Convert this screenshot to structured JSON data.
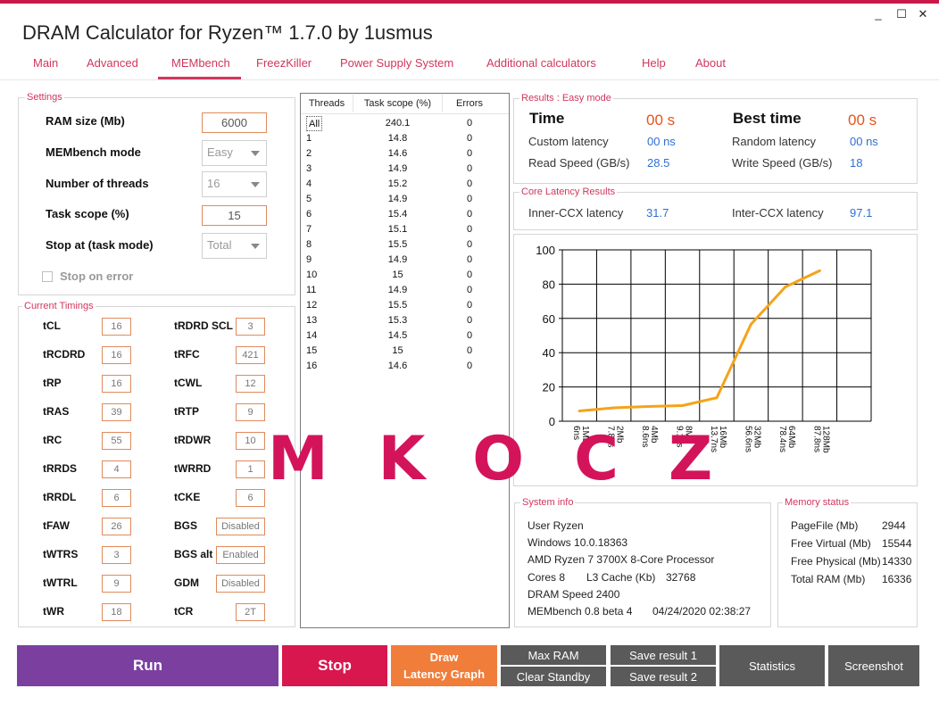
{
  "window": {
    "title": "DRAM Calculator for Ryzen™ 1.7.0 by 1usmus",
    "minimize": "_",
    "maximize": "☐",
    "close": "✕"
  },
  "tabs": [
    "Main",
    "Advanced",
    "MEMbench",
    "FreezKiller",
    "Power Supply System",
    "Additional calculators",
    "Help",
    "About"
  ],
  "active_tab": "MEMbench",
  "settings": {
    "title": "Settings",
    "ram_size_label": "RAM size (Mb)",
    "ram_size_value": "6000",
    "mode_label": "MEMbench mode",
    "mode_value": "Easy",
    "threads_label": "Number of threads",
    "threads_value": "16",
    "task_scope_label": "Task scope (%)",
    "task_scope_value": "15",
    "stop_at_label": "Stop at (task mode)",
    "stop_at_value": "Total",
    "stop_on_error_label": "Stop on error"
  },
  "timings": {
    "title": "Current Timings",
    "left": [
      {
        "label": "tCL",
        "value": "16"
      },
      {
        "label": "tRCDRD",
        "value": "16"
      },
      {
        "label": "tRP",
        "value": "16"
      },
      {
        "label": "tRAS",
        "value": "39"
      },
      {
        "label": "tRC",
        "value": "55"
      },
      {
        "label": "tRRDS",
        "value": "4"
      },
      {
        "label": "tRRDL",
        "value": "6"
      },
      {
        "label": "tFAW",
        "value": "26"
      },
      {
        "label": "tWTRS",
        "value": "3"
      },
      {
        "label": "tWTRL",
        "value": "9"
      },
      {
        "label": "tWR",
        "value": "18"
      }
    ],
    "right": [
      {
        "label": "tRDRD SCL",
        "value": "3"
      },
      {
        "label": "tRFC",
        "value": "421"
      },
      {
        "label": "tCWL",
        "value": "12"
      },
      {
        "label": "tRTP",
        "value": "9"
      },
      {
        "label": "tRDWR",
        "value": "10"
      },
      {
        "label": "tWRRD",
        "value": "1"
      },
      {
        "label": "tCKE",
        "value": "6"
      },
      {
        "label": "BGS",
        "value": "Disabled"
      },
      {
        "label": "BGS alt",
        "value": "Enabled"
      },
      {
        "label": "GDM",
        "value": "Disabled"
      },
      {
        "label": "tCR",
        "value": "2T"
      }
    ]
  },
  "threads_table": {
    "headers": [
      "Threads",
      "Task scope (%)",
      "Errors"
    ],
    "rows": [
      [
        "All",
        "240.1",
        "0"
      ],
      [
        "1",
        "14.8",
        "0"
      ],
      [
        "2",
        "14.6",
        "0"
      ],
      [
        "3",
        "14.9",
        "0"
      ],
      [
        "4",
        "15.2",
        "0"
      ],
      [
        "5",
        "14.9",
        "0"
      ],
      [
        "6",
        "15.4",
        "0"
      ],
      [
        "7",
        "15.1",
        "0"
      ],
      [
        "8",
        "15.5",
        "0"
      ],
      [
        "9",
        "14.9",
        "0"
      ],
      [
        "10",
        "15",
        "0"
      ],
      [
        "11",
        "14.9",
        "0"
      ],
      [
        "12",
        "15.5",
        "0"
      ],
      [
        "13",
        "15.3",
        "0"
      ],
      [
        "14",
        "14.5",
        "0"
      ],
      [
        "15",
        "15",
        "0"
      ],
      [
        "16",
        "14.6",
        "0"
      ]
    ]
  },
  "results": {
    "title": "Results : Easy mode",
    "time_label": "Time",
    "time_value": "00 s",
    "best_label": "Best time",
    "best_value": "00 s",
    "custom_latency_label": "Custom latency",
    "custom_latency_value": "00 ns",
    "random_latency_label": "Random latency",
    "random_latency_value": "00 ns",
    "read_label": "Read Speed (GB/s)",
    "read_value": "28.5",
    "write_label": "Write Speed (GB/s)",
    "write_value": "18"
  },
  "core_latency": {
    "title": "Core Latency Results",
    "inner_label": "Inner-CCX latency",
    "inner_value": "31.7",
    "inter_label": "Inter-CCX latency",
    "inter_value": "97.1"
  },
  "chart_data": {
    "type": "line",
    "categories": [
      "1Mb",
      "2Mb",
      "4Mb",
      "8Mb",
      "16Mb",
      "32Mb",
      "64Mb",
      "128Mb"
    ],
    "latency_labels": [
      "6ns",
      "7.8ns",
      "8.6ns",
      "9.1ns",
      "13.7ns",
      "56.6ns",
      "78.4ns",
      "87.8ns"
    ],
    "values": [
      6,
      7.8,
      8.6,
      9.1,
      13.7,
      56.6,
      78.4,
      87.8
    ],
    "ylim": [
      0,
      100
    ],
    "yticks": [
      "0",
      "20",
      "40",
      "60",
      "80",
      "100"
    ],
    "grid": true,
    "line_color": "#f5a31a"
  },
  "system_info": {
    "title": "System info",
    "user": "User Ryzen",
    "os": "Windows 10.0.18363",
    "cpu": "AMD Ryzen 7 3700X 8-Core Processor",
    "cores": "Cores 8",
    "l3": "L3 Cache (Kb)",
    "l3_value": "32768",
    "dram": "DRAM Speed 2400",
    "bench": "MEMbench 0.8 beta 4",
    "date": "04/24/2020 02:38:27"
  },
  "memory_status": {
    "title": "Memory status",
    "rows": [
      {
        "label": "PageFile (Mb)",
        "value": "2944"
      },
      {
        "label": "Free Virtual (Mb)",
        "value": "15544"
      },
      {
        "label": "Free Physical (Mb)",
        "value": "14330"
      },
      {
        "label": "Total RAM (Mb)",
        "value": "16336"
      }
    ]
  },
  "buttons": {
    "run": "Run",
    "stop": "Stop",
    "draw_line1": "Draw",
    "draw_line2": "Latency Graph",
    "max_ram": "Max RAM",
    "clear_standby": "Clear Standby",
    "save1": "Save result 1",
    "save2": "Save result 2",
    "statistics": "Statistics",
    "screenshot": "Screenshot"
  },
  "colors": {
    "accent": "#d2365c",
    "run": "#7b3fa0",
    "stop": "#d8174f",
    "draw": "#f07d3a",
    "gray_btn": "#5a5a5a"
  },
  "watermark": "MKOCZ"
}
